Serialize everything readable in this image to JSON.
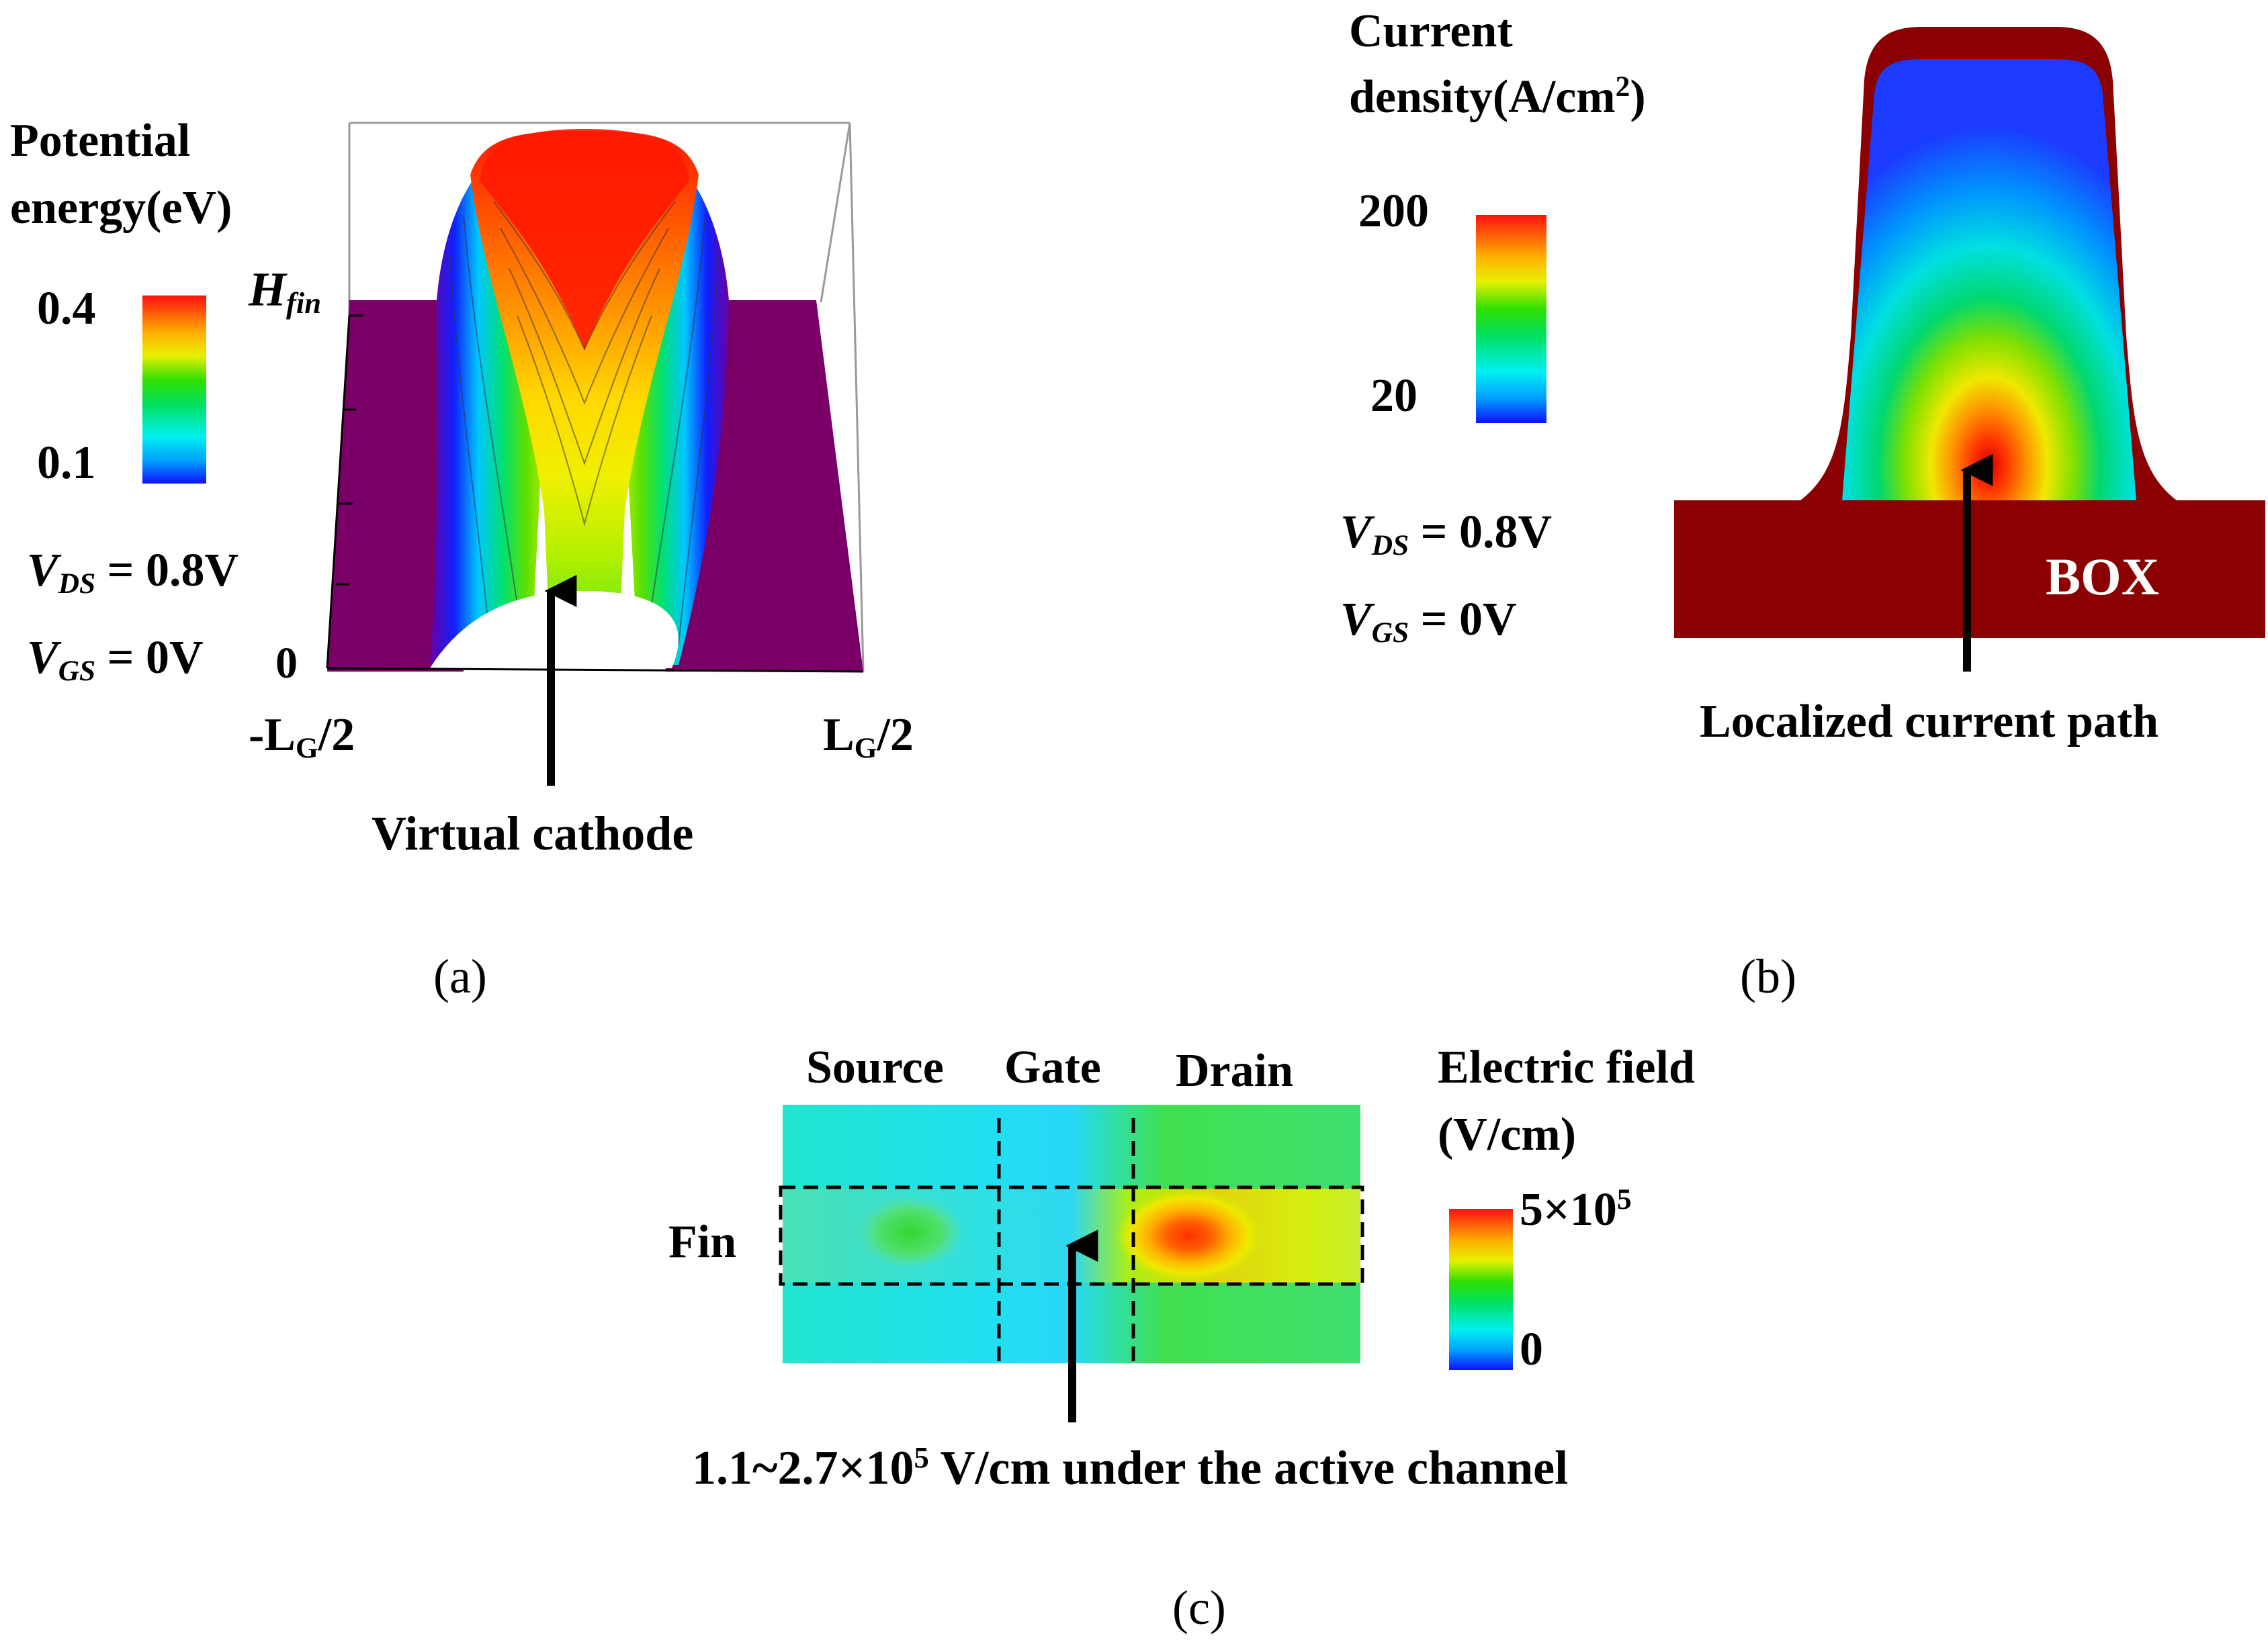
{
  "panel_a": {
    "legend_title_line1": "Potential",
    "legend_title_line2": "energy(eV)",
    "colorbar_max": "0.4",
    "colorbar_min": "0.1",
    "y_top_label_main": "H",
    "y_top_label_sub": "fin",
    "y_bottom_label": "0",
    "x_left_label_prefix": "-L",
    "x_left_label_sub": "G",
    "x_left_label_suffix": "/2",
    "x_right_label_prefix": "L",
    "x_right_label_sub": "G",
    "x_right_label_suffix": "/2",
    "vds_symbol": "V",
    "vds_sub": "DS",
    "vds_value": " = 0.8V",
    "vgs_symbol": "V",
    "vgs_sub": "GS",
    "vgs_value": " = 0V",
    "annotation": "Virtual cathode",
    "panel_label": "(a)"
  },
  "panel_b": {
    "legend_title_line1": "Current",
    "legend_title_line2": "density(A/cm",
    "legend_title_sup": "2",
    "legend_title_end": ")",
    "colorbar_max": "200",
    "colorbar_min": "20",
    "vds_symbol": "V",
    "vds_sub": "DS",
    "vds_value": " = 0.8V",
    "vgs_symbol": "V",
    "vgs_sub": "GS",
    "vgs_value": " = 0V",
    "box_label": "BOX",
    "annotation": "Localized current path",
    "panel_label": "(b)"
  },
  "panel_c": {
    "region_source": "Source",
    "region_gate": "Gate",
    "region_drain": "Drain",
    "fin_label": "Fin",
    "legend_title_line1": "Electric field",
    "legend_title_line2": "(V/cm)",
    "colorbar_max_base": "5×10",
    "colorbar_max_exp": "5",
    "colorbar_min": "0",
    "annotation_prefix": "1.1~2.7×10",
    "annotation_exp": "5",
    "annotation_suffix": " V/cm under the active channel",
    "panel_label": "(c)"
  },
  "colors": {
    "purple_plane": "#7a0068",
    "box_dark_red": "#8b0000",
    "fin_blue": "#1b3cff",
    "cyan_bg": "#20e0f0"
  }
}
